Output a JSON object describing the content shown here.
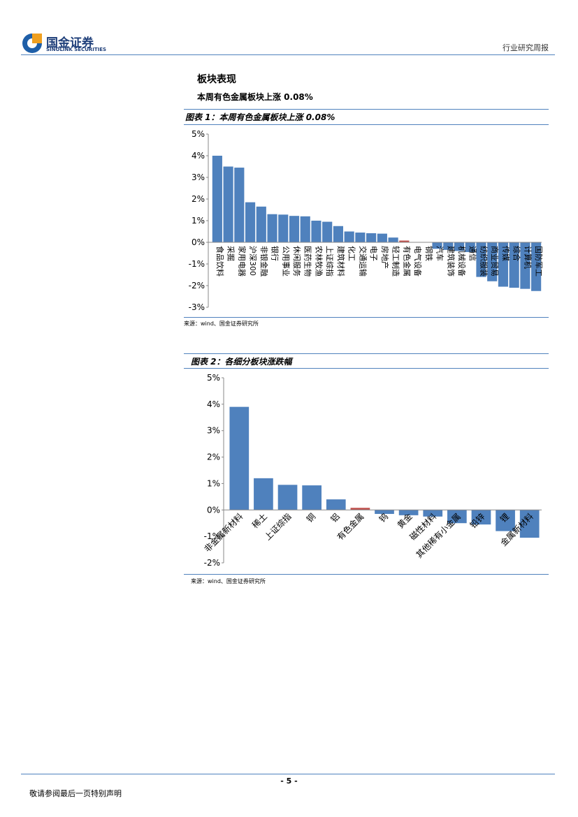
{
  "header": {
    "logo_cn": "国金证券",
    "logo_en": "SINOLINK SECURITIES",
    "report_type": "行业研究周报"
  },
  "section": {
    "title": "板块表现",
    "subtitle": "本周有色金属板块上涨 0.08%"
  },
  "chart_data": [
    {
      "type": "bar",
      "title": "图表 1：本周有色金属板块上涨 0.08%",
      "categories": [
        "食品饮料",
        "采掘",
        "家用电器",
        "沪深300",
        "非银金融",
        "银行",
        "公用事业",
        "休闲服务",
        "医药生物",
        "农林牧渔",
        "上证综指",
        "建筑材料",
        "化工",
        "交通运输",
        "电子",
        "房地产",
        "轻工制造",
        "有色金属",
        "电气设备",
        "钢铁",
        "汽车",
        "建筑装饰",
        "机械设备",
        "通信",
        "纺织服装",
        "商业贸易",
        "传媒",
        "综合",
        "计算机",
        "国防军工"
      ],
      "values": [
        4.0,
        3.5,
        3.45,
        1.85,
        1.65,
        1.3,
        1.28,
        1.22,
        1.2,
        1.0,
        0.95,
        0.75,
        0.5,
        0.45,
        0.42,
        0.4,
        0.22,
        0.08,
        0.01,
        0.0,
        -0.3,
        -0.35,
        -0.4,
        -0.45,
        -1.6,
        -1.8,
        -2.05,
        -2.1,
        -2.15,
        -2.25
      ],
      "colors": [
        "#4f81bd",
        "#4f81bd",
        "#4f81bd",
        "#4f81bd",
        "#4f81bd",
        "#4f81bd",
        "#4f81bd",
        "#4f81bd",
        "#4f81bd",
        "#4f81bd",
        "#4f81bd",
        "#4f81bd",
        "#4f81bd",
        "#4f81bd",
        "#4f81bd",
        "#4f81bd",
        "#4f81bd",
        "#c0504d",
        "#4f81bd",
        "#4f81bd",
        "#4f81bd",
        "#4f81bd",
        "#4f81bd",
        "#4f81bd",
        "#4f81bd",
        "#4f81bd",
        "#4f81bd",
        "#4f81bd",
        "#4f81bd",
        "#4f81bd"
      ],
      "ylim": [
        -3,
        5
      ],
      "yticks": [
        {
          "value": 5,
          "label": "5%"
        },
        {
          "value": 4,
          "label": "4%"
        },
        {
          "value": 3,
          "label": "3%"
        },
        {
          "value": 2,
          "label": "2%"
        },
        {
          "value": 1,
          "label": "1%"
        },
        {
          "value": 0,
          "label": "0%"
        },
        {
          "value": -1,
          "label": "-1%"
        },
        {
          "value": -2,
          "label": "-2%"
        },
        {
          "value": -3,
          "label": "-3%"
        }
      ],
      "source": "来源：wind、国金证券研究所"
    },
    {
      "type": "bar",
      "title": "图表 2：各细分板块涨跌幅",
      "categories": [
        "非金属新材料",
        "稀土",
        "上证综指",
        "铜",
        "铝",
        "有色金属",
        "钨",
        "黄金",
        "磁性材料",
        "其他稀有小金属",
        "铅锌",
        "锂",
        "金属新材料"
      ],
      "values": [
        3.9,
        1.2,
        0.95,
        0.93,
        0.4,
        0.08,
        -0.15,
        -0.2,
        -0.25,
        -0.5,
        -0.55,
        -0.8,
        -1.05
      ],
      "colors": [
        "#4f81bd",
        "#4f81bd",
        "#4f81bd",
        "#4f81bd",
        "#4f81bd",
        "#c0504d",
        "#4f81bd",
        "#4f81bd",
        "#4f81bd",
        "#4f81bd",
        "#4f81bd",
        "#4f81bd",
        "#4f81bd"
      ],
      "ylim": [
        -2,
        5
      ],
      "yticks": [
        {
          "value": 5,
          "label": "5%"
        },
        {
          "value": 4,
          "label": "4%"
        },
        {
          "value": 3,
          "label": "3%"
        },
        {
          "value": 2,
          "label": "2%"
        },
        {
          "value": 1,
          "label": "1%"
        },
        {
          "value": 0,
          "label": "0%"
        },
        {
          "value": -1,
          "label": "-1%"
        },
        {
          "value": -2,
          "label": "-2%"
        }
      ],
      "source": "来源：wind、国金证券研究所"
    }
  ],
  "footer": {
    "page": "- 5 -",
    "disclaimer": "敬请参阅最后一页特别声明"
  }
}
